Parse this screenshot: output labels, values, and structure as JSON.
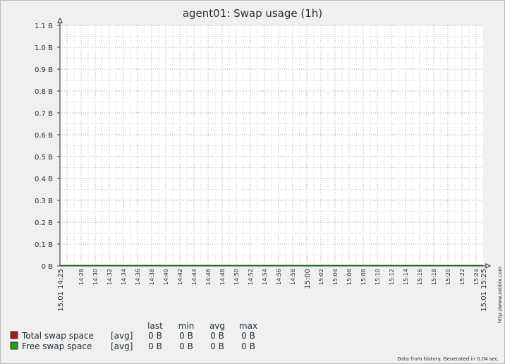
{
  "chart_data": {
    "type": "line",
    "title": "agent01: Swap usage (1h)",
    "y_ticks": [
      "0 B",
      "0.1 B",
      "0.2 B",
      "0.3 B",
      "0.4 B",
      "0.5 B",
      "0.6 B",
      "0.7 B",
      "0.8 B",
      "0.9 B",
      "1.0 B",
      "1.1 B"
    ],
    "ylim": [
      0,
      1.1
    ],
    "x_ticks": [
      "14:28",
      "14:30",
      "14:32",
      "14:34",
      "14:36",
      "14:38",
      "14:40",
      "14:42",
      "14:44",
      "14:46",
      "14:48",
      "14:50",
      "14:52",
      "14:54",
      "14:56",
      "14:58",
      "15:00",
      "15:02",
      "15:04",
      "15:06",
      "15:08",
      "15:10",
      "15:12",
      "15:14",
      "15:16",
      "15:18",
      "15:20",
      "15:22",
      "15:24"
    ],
    "x_start_label": "15.01 14:25",
    "x_end_label": "15.01 15:25",
    "grid": true,
    "series": [
      {
        "name": "Total swap space",
        "color": "#a31c1c",
        "values": [
          0,
          0
        ]
      },
      {
        "name": "Free swap space",
        "color": "#1aa31a",
        "values": [
          0,
          0
        ]
      }
    ]
  },
  "legend": {
    "headers": [
      "last",
      "min",
      "avg",
      "max"
    ],
    "rows": [
      {
        "name": "Total swap space",
        "func": "[avg]",
        "color": "#a31c1c",
        "last": "0 B",
        "min": "0 B",
        "avg": "0 B",
        "max": "0 B"
      },
      {
        "name": "Free swap space",
        "func": "[avg]",
        "color": "#1aa31a",
        "last": "0 B",
        "min": "0 B",
        "avg": "0 B",
        "max": "0 B"
      }
    ]
  },
  "footer": "Data from history. Generated in 0.04 sec.",
  "watermark": "http://www.zabbix.com"
}
